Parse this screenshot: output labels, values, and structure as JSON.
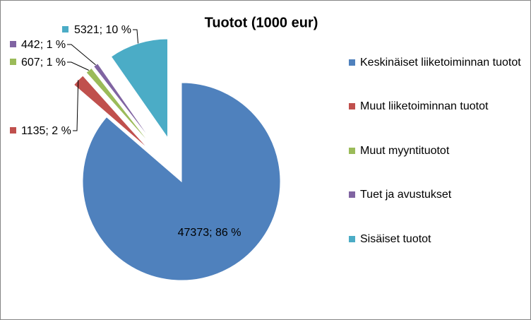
{
  "chart_data": {
    "type": "pie",
    "title": "Tuotot  (1000 eur)",
    "categories": [
      "Keskinäiset liiketoiminnan tuotot",
      "Muut liiketoiminnan tuotot",
      "Muut myyntituotot",
      "Tuet ja avustukset",
      "Sisäiset tuotot"
    ],
    "values": [
      47373,
      1135,
      607,
      442,
      5321
    ],
    "value_labels": [
      "47373; 86 %",
      "1135; 2 %",
      "607; 1 %",
      "442; 1 %",
      "5321; 10 %"
    ],
    "colors": [
      "#4f81bd",
      "#c0504d",
      "#9bbb59",
      "#8064a2",
      "#4bacc6"
    ],
    "legend": "right"
  }
}
